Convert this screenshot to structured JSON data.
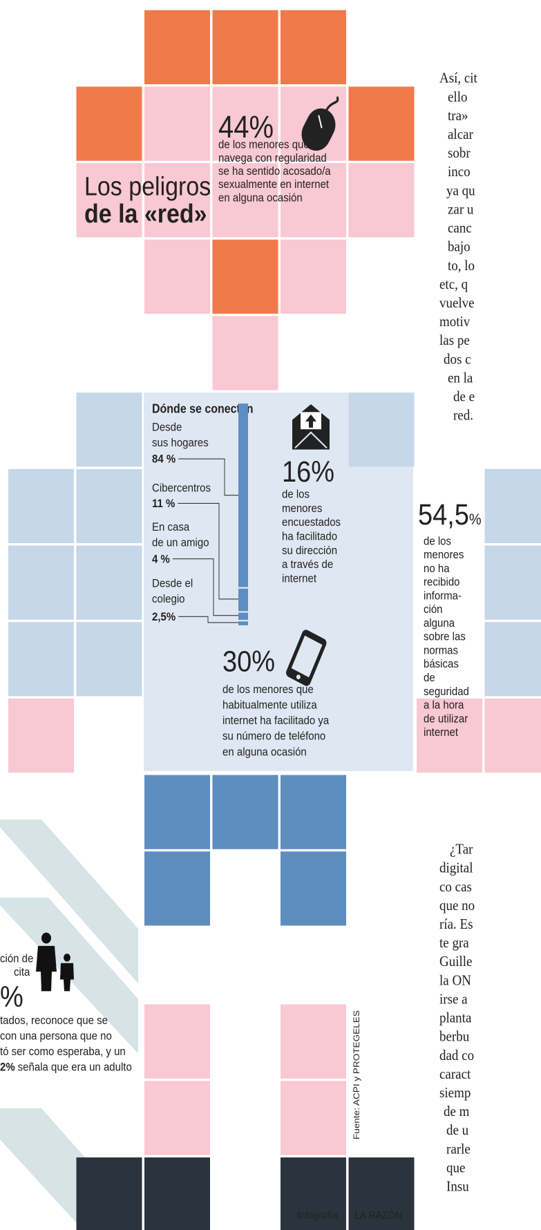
{
  "title": {
    "line1": "Los peligros",
    "line2": "de la «red»"
  },
  "stats": [
    {
      "value_label": "44%",
      "lines": [
        "de los menores que",
        "navega con regularidad",
        "se ha sentido acosado/a",
        "sexualmente en internet",
        "en alguna ocasión"
      ]
    },
    {
      "value_label": "16%",
      "lines": [
        "de los",
        "menores",
        "encuestados",
        "ha facilitado",
        "su dirección",
        "a través de",
        "internet"
      ]
    },
    {
      "value_label": "30%",
      "lines": [
        "de los menores que",
        "habitualmente utiliza",
        "internet ha facilitado ya",
        "su número de teléfono",
        "en alguna ocasión"
      ]
    },
    {
      "number": "54,5",
      "unit": "%",
      "lines": [
        "de los",
        "menores",
        "no ha",
        "recibido",
        "informa-",
        "ción",
        "alguna",
        "sobre las",
        "normas",
        "básicas",
        "de",
        "seguridad",
        "a la hora",
        "de utilizar",
        "internet"
      ]
    }
  ],
  "connect": {
    "title": "Dónde se conectan",
    "items": [
      {
        "lines": [
          "Desde",
          "sus hogares"
        ],
        "value_label": "84 %",
        "value": 84
      },
      {
        "lines": [
          "Cibercentros"
        ],
        "value_label": "11 %",
        "value": 11
      },
      {
        "lines": [
          "En casa",
          "de un amigo"
        ],
        "value_label": "4 %",
        "value": 4
      },
      {
        "lines": [
          "Desde el",
          "colegio"
        ],
        "value_label": "2,5%",
        "value": 2.5
      }
    ]
  },
  "left_fragment": {
    "lines": [
      "ción de",
      "cita",
      "%",
      "tados, reconoce que se",
      "con una persona que no",
      "tó ser como esperaba, y un"
    ],
    "bold": "2%",
    "last": "señala que era un adulto"
  },
  "source": "Fuente: ACPI y PROTEGELES",
  "credit": [
    "Infografía",
    "LA RAZÓN"
  ],
  "body_top": [
    "Así, cit",
    "ello",
    "tra»",
    "alcar",
    "sobr",
    "inco",
    "ya qu",
    "zar u",
    "canc",
    "bajo",
    "to, lo",
    "etc, q",
    "vuelve",
    "motiv",
    "las pe",
    "dos c",
    "en la",
    "de e",
    "red."
  ],
  "body_bottom": [
    "¿Tar",
    "digital",
    "co cas",
    "que no",
    "ría. Es",
    "te gra",
    "Guille",
    "la ON",
    "irse a",
    "planta",
    "berbu",
    "dad co",
    "caract",
    "siemp",
    "de m",
    "de u",
    "rarle",
    "que",
    "Insu"
  ]
}
